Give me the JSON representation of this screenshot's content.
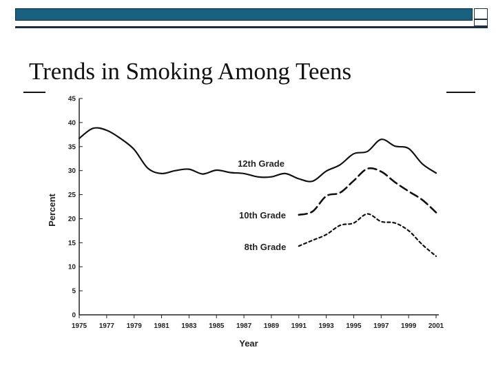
{
  "slide": {
    "title": "Trends in Smoking Among Teens"
  },
  "chart_data": {
    "type": "line",
    "title": "",
    "xlabel": "Year",
    "ylabel": "Percent",
    "xlim": [
      1975,
      2001
    ],
    "ylim": [
      0,
      45
    ],
    "yticks": [
      0,
      5,
      10,
      15,
      20,
      25,
      30,
      35,
      40,
      45
    ],
    "xticks": [
      1975,
      1977,
      1979,
      1981,
      1983,
      1985,
      1987,
      1989,
      1991,
      1993,
      1995,
      1997,
      1999,
      2001
    ],
    "grid": false,
    "series": [
      {
        "name": "12th Grade",
        "style": "solid",
        "x": [
          1975,
          1976,
          1977,
          1978,
          1979,
          1980,
          1981,
          1982,
          1983,
          1984,
          1985,
          1986,
          1987,
          1988,
          1989,
          1990,
          1991,
          1992,
          1993,
          1994,
          1995,
          1996,
          1997,
          1998,
          1999,
          2000,
          2001
        ],
        "values": [
          36.7,
          38.8,
          38.4,
          36.7,
          34.4,
          30.5,
          29.4,
          30.0,
          30.3,
          29.3,
          30.1,
          29.6,
          29.4,
          28.7,
          28.7,
          29.4,
          28.3,
          27.8,
          29.9,
          31.2,
          33.5,
          34.0,
          36.5,
          35.1,
          34.6,
          31.4,
          29.5
        ]
      },
      {
        "name": "10th Grade",
        "style": "dashed",
        "x": [
          1991,
          1992,
          1993,
          1994,
          1995,
          1996,
          1997,
          1998,
          1999,
          2000,
          2001
        ],
        "values": [
          20.8,
          21.5,
          24.7,
          25.4,
          27.9,
          30.4,
          29.8,
          27.6,
          25.7,
          23.9,
          21.3
        ]
      },
      {
        "name": "8th Grade",
        "style": "dotted",
        "x": [
          1991,
          1992,
          1993,
          1994,
          1995,
          1996,
          1997,
          1998,
          1999,
          2000,
          2001
        ],
        "values": [
          14.3,
          15.5,
          16.7,
          18.6,
          19.1,
          21.0,
          19.4,
          19.1,
          17.5,
          14.6,
          12.2
        ]
      }
    ]
  }
}
